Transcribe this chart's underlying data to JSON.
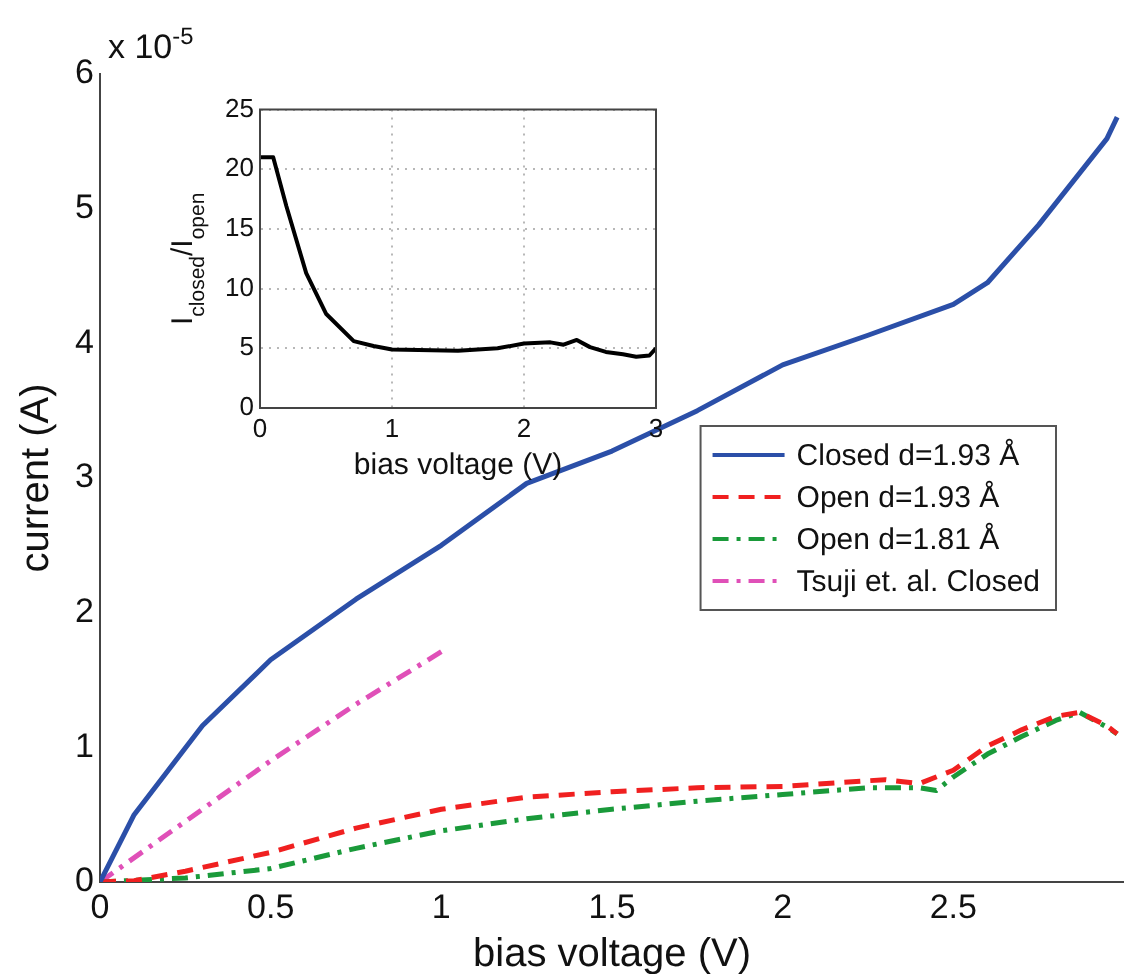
{
  "chart_data": [
    {
      "type": "line",
      "xlabel": "bias voltage (V)",
      "ylabel": "current (A)",
      "annotations": [
        "x 10$^{-5}$"
      ],
      "xlim": [
        0,
        3
      ],
      "xticks": [
        0,
        0.5,
        1,
        1.5,
        2,
        2.5
      ],
      "ylim": [
        0,
        6
      ],
      "yticks": [
        0,
        1,
        2,
        3,
        4,
        5,
        6
      ],
      "grid": false,
      "legend": "right",
      "marker": "none",
      "series": [
        {
          "name": "Closed d=1.93 Å",
          "color": "#2b4fa8",
          "line_style": "solid",
          "x": [
            0,
            0.1,
            0.2,
            0.3,
            0.5,
            0.75,
            1.0,
            1.25,
            1.5,
            1.75,
            2.0,
            2.25,
            2.5,
            2.6,
            2.75,
            2.95,
            2.98
          ],
          "values": [
            0,
            0.5,
            0.83,
            1.16,
            1.65,
            2.1,
            2.5,
            2.96,
            3.2,
            3.5,
            3.84,
            4.06,
            4.29,
            4.45,
            4.88,
            5.52,
            5.68
          ]
        },
        {
          "name": "Open d=1.93 Å",
          "color": "#f02020",
          "line_style": "dashed",
          "x": [
            0,
            0.1,
            0.25,
            0.5,
            0.75,
            1.0,
            1.25,
            1.5,
            1.75,
            2.0,
            2.3,
            2.4,
            2.5,
            2.6,
            2.7,
            2.8,
            2.87,
            2.95,
            2.98
          ],
          "values": [
            0,
            0.01,
            0.08,
            0.22,
            0.4,
            0.54,
            0.63,
            0.67,
            0.7,
            0.71,
            0.76,
            0.73,
            0.83,
            1.01,
            1.13,
            1.23,
            1.26,
            1.16,
            1.1
          ]
        },
        {
          "name": "Open d=1.81 Å",
          "color": "#1a9a3a",
          "line_style": "dashdot",
          "x": [
            0,
            0.25,
            0.5,
            0.75,
            1.0,
            1.25,
            1.5,
            1.75,
            2.0,
            2.25,
            2.4,
            2.45,
            2.5,
            2.6,
            2.7,
            2.8,
            2.87,
            2.95,
            2.98
          ],
          "values": [
            0,
            0.03,
            0.1,
            0.25,
            0.38,
            0.47,
            0.54,
            0.6,
            0.65,
            0.7,
            0.7,
            0.68,
            0.78,
            0.95,
            1.08,
            1.2,
            1.26,
            1.15,
            1.1
          ]
        },
        {
          "name": "Tsuji et. al. Closed",
          "color": "#e050b8",
          "line_style": "dashdot",
          "x": [
            0,
            0.25,
            0.5,
            0.75,
            1.0
          ],
          "values": [
            0,
            0.45,
            0.9,
            1.32,
            1.71
          ]
        }
      ]
    },
    {
      "type": "line",
      "xlabel": "bias voltage (V)",
      "ylabel": "I$_{closed}$/I$_{open}$",
      "xlim": [
        0,
        3
      ],
      "xticks": [
        0,
        1,
        2,
        3
      ],
      "ylim": [
        0,
        25
      ],
      "yticks": [
        0,
        5,
        10,
        15,
        20,
        25
      ],
      "grid": true,
      "marker": "none",
      "series": [
        {
          "color": "#000000",
          "line_style": "solid",
          "x": [
            0,
            0.1,
            0.2,
            0.35,
            0.5,
            0.71,
            0.86,
            1.0,
            1.5,
            1.8,
            2.0,
            2.2,
            2.3,
            2.4,
            2.5,
            2.62,
            2.75,
            2.85,
            2.95,
            3.0
          ],
          "values": [
            21,
            21,
            16.9,
            11.3,
            7.9,
            5.6,
            5.2,
            4.9,
            4.8,
            5.0,
            5.4,
            5.5,
            5.3,
            5.7,
            5.1,
            4.7,
            4.5,
            4.3,
            4.4,
            5.0
          ]
        }
      ]
    }
  ]
}
